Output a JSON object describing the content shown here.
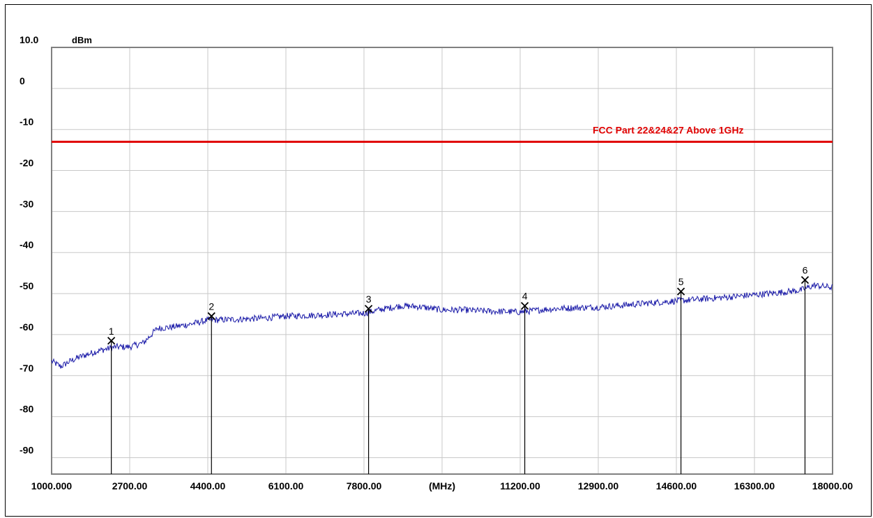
{
  "chart_data": {
    "type": "line",
    "title": "",
    "ylabel_unit": "dBm",
    "xlabel_unit": "(MHz)",
    "x_range": [
      1000,
      18000
    ],
    "y_range": [
      -94,
      10
    ],
    "y_ticks": [
      {
        "value": 10,
        "label": "10.0"
      },
      {
        "value": 0,
        "label": "0"
      },
      {
        "value": -10,
        "label": "-10"
      },
      {
        "value": -20,
        "label": "-20"
      },
      {
        "value": -30,
        "label": "-30"
      },
      {
        "value": -40,
        "label": "-40"
      },
      {
        "value": -50,
        "label": "-50"
      },
      {
        "value": -60,
        "label": "-60"
      },
      {
        "value": -70,
        "label": "-70"
      },
      {
        "value": -80,
        "label": "-80"
      },
      {
        "value": -90,
        "label": "-90"
      }
    ],
    "x_ticks": [
      {
        "value": 1000,
        "label": "1000.000"
      },
      {
        "value": 2700,
        "label": "2700.00"
      },
      {
        "value": 4400,
        "label": "4400.00"
      },
      {
        "value": 6100,
        "label": "6100.00"
      },
      {
        "value": 7800,
        "label": "7800.00"
      },
      {
        "value": 9500,
        "label": "(MHz)"
      },
      {
        "value": 11200,
        "label": "11200.00"
      },
      {
        "value": 12900,
        "label": "12900.00"
      },
      {
        "value": 14600,
        "label": "14600.00"
      },
      {
        "value": 16300,
        "label": "16300.00"
      },
      {
        "value": 18000,
        "label": "18000.00"
      }
    ],
    "grid": true,
    "limit_line": {
      "value": -13,
      "label": "FCC Part 22&24&27 Above 1GHz",
      "color": "#e00000"
    },
    "trace": {
      "color": "#1a1aa8",
      "x": [
        1000,
        1200,
        1400,
        1600,
        2000,
        2400,
        2700,
        3000,
        3300,
        3600,
        4000,
        4400,
        5000,
        5600,
        6100,
        6700,
        7300,
        7800,
        8200,
        8600,
        9000,
        9500,
        10000,
        10500,
        11200,
        11800,
        12300,
        12900,
        13500,
        14000,
        14600,
        15200,
        15800,
        16300,
        16800,
        17300,
        17600,
        18000
      ],
      "y": [
        -66.5,
        -67.8,
        -66.5,
        -65.5,
        -64,
        -63,
        -63,
        -62,
        -58.5,
        -58.2,
        -57.5,
        -56.5,
        -56.3,
        -56,
        -55.5,
        -55.3,
        -55,
        -54.8,
        -53.8,
        -53,
        -53.2,
        -54.0,
        -54.0,
        -54.3,
        -54.5,
        -53.8,
        -53.5,
        -53.3,
        -52.8,
        -52.3,
        -51.8,
        -51.3,
        -50.8,
        -50.3,
        -49.8,
        -49.2,
        -48.0,
        -48.5
      ]
    },
    "markers": [
      {
        "label": "1",
        "x": 2300,
        "y": -61.5
      },
      {
        "label": "2",
        "x": 4480,
        "y": -55.5
      },
      {
        "label": "3",
        "x": 7900,
        "y": -53.7
      },
      {
        "label": "4",
        "x": 11300,
        "y": -53.0
      },
      {
        "label": "5",
        "x": 14700,
        "y": -49.5
      },
      {
        "label": "6",
        "x": 17400,
        "y": -46.7
      }
    ],
    "colors": {
      "grid": "#c8c8c8",
      "axis_frame": "#808080",
      "marker_line": "#000000"
    }
  }
}
